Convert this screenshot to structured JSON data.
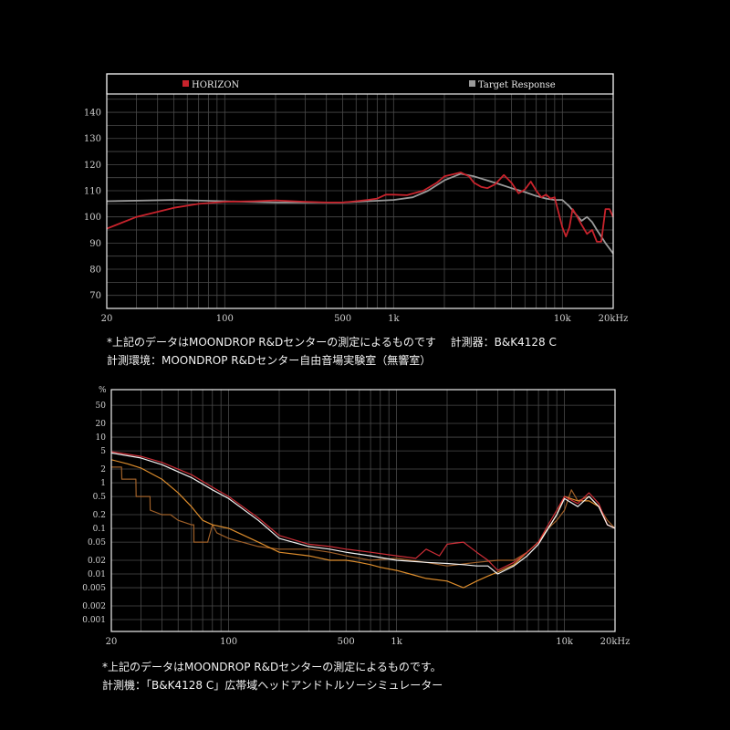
{
  "chart_data": [
    {
      "type": "line",
      "title": "",
      "xscale": "log",
      "xlim": [
        20,
        20000
      ],
      "ylim": [
        65,
        147
      ],
      "yticks": [
        70,
        80,
        90,
        100,
        110,
        120,
        130,
        140
      ],
      "xticks": [
        {
          "v": 20,
          "label": "20"
        },
        {
          "v": 100,
          "label": "100"
        },
        {
          "v": 500,
          "label": "500"
        },
        {
          "v": 1000,
          "label": "1k"
        },
        {
          "v": 10000,
          "label": "10k"
        },
        {
          "v": 20000,
          "label": "20kHz"
        }
      ],
      "legend": {
        "placement": "top",
        "items": [
          {
            "name": "HORIZON",
            "color": "#c8232c"
          },
          {
            "name": "Target Response",
            "color": "#9a9a9a"
          }
        ]
      },
      "series": [
        {
          "name": "HORIZON",
          "color": "#c8232c",
          "x": [
            20,
            30,
            50,
            70,
            100,
            150,
            200,
            300,
            400,
            500,
            600,
            700,
            800,
            900,
            1000,
            1200,
            1500,
            1800,
            2000,
            2500,
            2800,
            3000,
            3300,
            3600,
            4000,
            4500,
            5000,
            5500,
            6000,
            6500,
            7000,
            7500,
            8000,
            8500,
            9000,
            10000,
            10500,
            11000,
            11500,
            12000,
            13000,
            14000,
            15000,
            16000,
            17000,
            18000,
            19000,
            20000
          ],
          "y": [
            95.5,
            100,
            103.5,
            105,
            105.8,
            106,
            106.3,
            105.8,
            105.5,
            105.5,
            106,
            106.5,
            107,
            108.5,
            108.5,
            108.3,
            110,
            113,
            115.5,
            117,
            115.5,
            113,
            111.5,
            111,
            112.5,
            116,
            113,
            109,
            110.5,
            113.5,
            110,
            107.5,
            108.5,
            107,
            107.5,
            96,
            92.5,
            96,
            103,
            101,
            97,
            93.5,
            95,
            90.5,
            90.5,
            103,
            103,
            100
          ]
        },
        {
          "name": "Target Response",
          "color": "#9a9a9a",
          "x": [
            20,
            50,
            100,
            200,
            500,
            700,
            1000,
            1300,
            1600,
            2000,
            2500,
            3000,
            4000,
            5000,
            6000,
            7000,
            8000,
            9000,
            10000,
            11000,
            12000,
            13000,
            14000,
            15000,
            16000,
            17000,
            18000,
            20000
          ],
          "y": [
            106,
            106.5,
            106,
            105.5,
            105.5,
            106,
            106.5,
            107.5,
            110,
            114,
            116.5,
            115.5,
            113,
            111,
            109.5,
            108,
            107,
            106.5,
            106.5,
            104,
            101,
            98.5,
            100,
            98,
            95,
            92.5,
            90,
            86
          ]
        }
      ]
    },
    {
      "type": "line",
      "title": "",
      "xscale": "log",
      "yscale": "log",
      "ylabel": "%",
      "xlim": [
        20,
        20000
      ],
      "ylim": [
        0.00055,
        110
      ],
      "yticks": [
        {
          "v": 50,
          "label": "50"
        },
        {
          "v": 20,
          "label": "20"
        },
        {
          "v": 10,
          "label": "10"
        },
        {
          "v": 5,
          "label": "5"
        },
        {
          "v": 2,
          "label": "2"
        },
        {
          "v": 1,
          "label": "1"
        },
        {
          "v": 0.5,
          "label": "0.5"
        },
        {
          "v": 0.2,
          "label": "0.2"
        },
        {
          "v": 0.1,
          "label": "0.1"
        },
        {
          "v": 0.05,
          "label": "0.05"
        },
        {
          "v": 0.02,
          "label": "0.02"
        },
        {
          "v": 0.01,
          "label": "0.01"
        },
        {
          "v": 0.005,
          "label": "0.005"
        },
        {
          "v": 0.002,
          "label": "0.002"
        },
        {
          "v": 0.001,
          "label": "0.001"
        }
      ],
      "xticks": [
        {
          "v": 20,
          "label": "20"
        },
        {
          "v": 100,
          "label": "100"
        },
        {
          "v": 500,
          "label": "500"
        },
        {
          "v": 1000,
          "label": "1k"
        },
        {
          "v": 10000,
          "label": "10k"
        },
        {
          "v": 20000,
          "label": "20kHz"
        }
      ],
      "series": [
        {
          "color": "#ffffff",
          "x": [
            20,
            30,
            40,
            60,
            80,
            100,
            150,
            200,
            300,
            400,
            500,
            700,
            1000,
            1500,
            2000,
            2500,
            3000,
            3500,
            4000,
            5000,
            6000,
            7000,
            8000,
            9000,
            10000,
            12000,
            14000,
            16000,
            18000,
            20000
          ],
          "y": [
            4.5,
            3.5,
            2.5,
            1.3,
            0.7,
            0.45,
            0.15,
            0.06,
            0.04,
            0.035,
            0.03,
            0.025,
            0.02,
            0.018,
            0.017,
            0.016,
            0.015,
            0.015,
            0.01,
            0.015,
            0.025,
            0.045,
            0.1,
            0.2,
            0.45,
            0.3,
            0.5,
            0.3,
            0.12,
            0.1
          ]
        },
        {
          "color": "#d9303a",
          "x": [
            20,
            30,
            40,
            60,
            80,
            100,
            150,
            200,
            300,
            400,
            500,
            700,
            1000,
            1300,
            1500,
            1800,
            2000,
            2500,
            3000,
            3500,
            4000,
            5000,
            6000,
            7000,
            8000,
            9000,
            10000,
            12000,
            14000,
            16000,
            18000,
            20000
          ],
          "y": [
            4.8,
            3.8,
            2.8,
            1.5,
            0.8,
            0.5,
            0.17,
            0.07,
            0.045,
            0.04,
            0.035,
            0.03,
            0.025,
            0.022,
            0.035,
            0.025,
            0.045,
            0.05,
            0.03,
            0.02,
            0.012,
            0.018,
            0.03,
            0.05,
            0.12,
            0.25,
            0.5,
            0.35,
            0.6,
            0.35,
            0.12,
            0.1
          ]
        },
        {
          "color": "#e8942e",
          "x": [
            20,
            25,
            30,
            40,
            50,
            60,
            70,
            80,
            100,
            150,
            200,
            300,
            400,
            500,
            600,
            700,
            800,
            1000,
            1200,
            1500,
            2000,
            2500,
            3000,
            3500,
            4000,
            5000,
            6000,
            7000,
            8000,
            9000,
            10000,
            12000,
            14000,
            16000,
            18000,
            20000
          ],
          "y": [
            3.2,
            2.6,
            2.1,
            1.2,
            0.6,
            0.3,
            0.15,
            0.12,
            0.1,
            0.05,
            0.03,
            0.025,
            0.02,
            0.02,
            0.018,
            0.016,
            0.014,
            0.012,
            0.01,
            0.008,
            0.007,
            0.005,
            0.007,
            0.009,
            0.011,
            0.016,
            0.03,
            0.05,
            0.1,
            0.2,
            0.5,
            0.4,
            0.4,
            0.3,
            0.12,
            0.1
          ]
        },
        {
          "color": "#a6642a",
          "x": [
            20,
            23,
            23.1,
            28,
            28.1,
            34,
            34.1,
            40,
            45,
            50,
            60,
            62,
            62.1,
            75,
            80,
            85,
            100,
            120,
            150,
            200,
            300,
            400,
            500,
            700,
            1000,
            1500,
            2000,
            3000,
            4000,
            5000,
            6000,
            7000,
            8000,
            9000,
            10000,
            11000,
            12000,
            14000,
            16000,
            18000,
            20000
          ],
          "y": [
            2.2,
            2.2,
            1.2,
            1.2,
            0.5,
            0.5,
            0.25,
            0.2,
            0.2,
            0.15,
            0.12,
            0.12,
            0.05,
            0.05,
            0.12,
            0.08,
            0.06,
            0.05,
            0.04,
            0.035,
            0.035,
            0.03,
            0.025,
            0.02,
            0.022,
            0.018,
            0.015,
            0.018,
            0.02,
            0.02,
            0.03,
            0.05,
            0.1,
            0.15,
            0.25,
            0.7,
            0.4,
            0.5,
            0.3,
            0.15,
            0.1
          ]
        }
      ]
    }
  ],
  "notes": {
    "top_line1": "*上記のデータはMOONDROP R&Dセンターの測定によるものです　 計測器：B&K4128 C",
    "top_line2": "計測環境：MOONDROP R&Dセンター自由音場実験室（無響室）",
    "bottom_line1": "*上記のデータはMOONDROP R&Dセンターの測定によるものです。",
    "bottom_line2": "計測機：「B&K4128 C」広帯域ヘッドアンドトルソーシミュレーター"
  }
}
